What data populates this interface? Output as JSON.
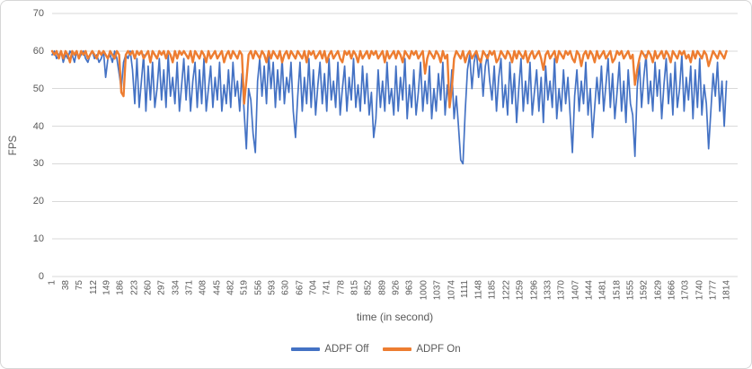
{
  "chart_data": {
    "type": "line",
    "title": "",
    "xlabel": "time (in second)",
    "ylabel": "FPS",
    "ylim": [
      0,
      70
    ],
    "grid": true,
    "legend_position": "bottom",
    "y_ticks": [
      0,
      10,
      20,
      30,
      40,
      50,
      60,
      70
    ],
    "x_tick_labels": [
      "1",
      "38",
      "75",
      "112",
      "149",
      "186",
      "223",
      "260",
      "297",
      "334",
      "371",
      "408",
      "445",
      "482",
      "519",
      "556",
      "593",
      "630",
      "667",
      "704",
      "741",
      "778",
      "815",
      "852",
      "889",
      "926",
      "963",
      "1000",
      "1037",
      "1074",
      "1111",
      "1148",
      "1185",
      "1222",
      "1259",
      "1296",
      "1333",
      "1370",
      "1407",
      "1444",
      "1481",
      "1518",
      "1555",
      "1592",
      "1629",
      "1666",
      "1703",
      "1740",
      "1777",
      "1814"
    ],
    "x": {
      "start": 1,
      "step": 6,
      "count": 303
    },
    "colors": {
      "adpf_off": "#4472C4",
      "adpf_on": "#ED7D31",
      "grid": "#D9D9D9",
      "axis_text": "#595959"
    },
    "series": [
      {
        "name": "ADPF Off",
        "color": "#4472C4",
        "values": [
          59,
          60,
          58,
          59,
          60,
          57,
          59,
          58,
          60,
          59,
          57,
          60,
          58,
          59,
          60,
          58,
          57,
          59,
          60,
          58,
          59,
          57,
          58,
          60,
          53,
          58,
          59,
          57,
          60,
          58,
          54,
          50,
          57,
          59,
          58,
          60,
          55,
          46,
          58,
          45,
          52,
          59,
          44,
          56,
          47,
          57,
          45,
          50,
          58,
          47,
          55,
          45,
          59,
          48,
          53,
          46,
          57,
          44,
          51,
          58,
          47,
          56,
          44,
          52,
          57,
          45,
          55,
          46,
          58,
          44,
          50,
          56,
          45,
          53,
          47,
          57,
          44,
          51,
          46,
          55,
          45,
          57,
          48,
          52,
          44,
          54,
          44,
          34,
          50,
          47,
          38,
          33,
          52,
          58,
          48,
          56,
          46,
          59,
          50,
          57,
          45,
          55,
          47,
          58,
          46,
          53,
          49,
          57,
          44,
          37,
          48,
          57,
          44,
          53,
          46,
          58,
          45,
          55,
          43,
          51,
          57,
          46,
          54,
          44,
          58,
          47,
          52,
          45,
          57,
          43,
          50,
          56,
          44,
          53,
          47,
          58,
          45,
          51,
          44,
          56,
          46,
          54,
          43,
          49,
          37,
          42,
          55,
          45,
          52,
          44,
          57,
          46,
          50,
          43,
          56,
          44,
          53,
          47,
          58,
          42,
          51,
          45,
          55,
          43,
          49,
          57,
          44,
          52,
          46,
          56,
          42,
          50,
          44,
          54,
          47,
          57,
          43,
          51,
          45,
          55,
          42,
          48,
          40,
          31,
          30,
          44,
          55,
          59,
          50,
          57,
          60,
          53,
          58,
          48,
          56,
          59,
          52,
          47,
          56,
          44,
          53,
          58,
          45,
          51,
          43,
          57,
          46,
          54,
          41,
          50,
          58,
          44,
          52,
          46,
          57,
          43,
          49,
          55,
          44,
          53,
          41,
          56,
          47,
          52,
          45,
          58,
          42,
          50,
          44,
          55,
          46,
          53,
          43,
          33,
          48,
          55,
          44,
          52,
          46,
          57,
          43,
          50,
          37,
          45,
          53,
          46,
          56,
          44,
          51,
          58,
          45,
          54,
          42,
          49,
          57,
          44,
          52,
          41,
          55,
          46,
          43,
          32,
          50,
          57,
          45,
          53,
          59,
          46,
          52,
          44,
          57,
          48,
          55,
          42,
          51,
          58,
          46,
          54,
          43,
          57,
          45,
          50,
          59,
          44,
          53,
          47,
          56,
          42,
          55,
          45,
          58,
          43,
          51,
          46,
          34,
          44,
          54,
          48,
          57,
          44,
          52,
          40,
          52
        ]
      },
      {
        "name": "ADPF On",
        "color": "#ED7D31",
        "values": [
          60,
          59,
          60,
          58,
          60,
          58,
          60,
          59,
          57,
          60,
          59,
          60,
          58,
          60,
          59,
          60,
          58,
          59,
          60,
          59,
          58,
          60,
          59,
          60,
          59,
          58,
          60,
          59,
          58,
          60,
          59,
          49,
          48,
          59,
          60,
          59,
          60,
          58,
          60,
          59,
          60,
          58,
          59,
          60,
          57,
          60,
          59,
          58,
          60,
          59,
          60,
          58,
          60,
          59,
          57,
          60,
          58,
          60,
          59,
          60,
          59,
          58,
          60,
          57,
          60,
          59,
          58,
          60,
          59,
          57,
          60,
          58,
          59,
          60,
          58,
          59,
          60,
          57,
          59,
          60,
          58,
          60,
          59,
          58,
          60,
          59,
          46,
          52,
          59,
          60,
          58,
          60,
          59,
          58,
          60,
          59,
          57,
          60,
          58,
          60,
          59,
          58,
          60,
          57,
          59,
          60,
          58,
          60,
          59,
          58,
          60,
          59,
          58,
          60,
          57,
          60,
          59,
          60,
          58,
          59,
          60,
          58,
          60,
          57,
          59,
          60,
          58,
          59,
          60,
          58,
          57,
          60,
          59,
          60,
          58,
          60,
          59,
          57,
          60,
          58,
          59,
          60,
          58,
          60,
          59,
          60,
          58,
          59,
          60,
          57,
          60,
          58,
          59,
          60,
          58,
          60,
          59,
          57,
          60,
          59,
          58,
          60,
          59,
          60,
          58,
          59,
          60,
          54,
          58,
          60,
          59,
          58,
          60,
          59,
          57,
          60,
          58,
          59,
          45,
          50,
          58,
          60,
          59,
          58,
          60,
          57,
          59,
          60,
          58,
          59,
          60,
          58,
          57,
          60,
          59,
          58,
          60,
          59,
          60,
          57,
          58,
          60,
          59,
          58,
          60,
          59,
          57,
          60,
          58,
          60,
          59,
          58,
          60,
          57,
          59,
          60,
          58,
          59,
          60,
          58,
          55,
          59,
          60,
          58,
          59,
          60,
          57,
          60,
          59,
          58,
          60,
          59,
          60,
          58,
          57,
          60,
          59,
          56,
          59,
          60,
          58,
          60,
          59,
          57,
          60,
          58,
          59,
          60,
          58,
          59,
          60,
          57,
          58,
          60,
          59,
          60,
          58,
          59,
          60,
          58,
          59,
          51,
          55,
          58,
          60,
          59,
          58,
          60,
          59,
          57,
          60,
          58,
          59,
          60,
          58,
          60,
          59,
          57,
          60,
          59,
          58,
          60,
          59,
          60,
          58,
          59,
          57,
          60,
          58,
          60,
          59,
          58,
          60,
          59,
          56,
          58,
          60,
          59,
          58,
          60,
          59,
          58,
          60
        ]
      }
    ]
  }
}
